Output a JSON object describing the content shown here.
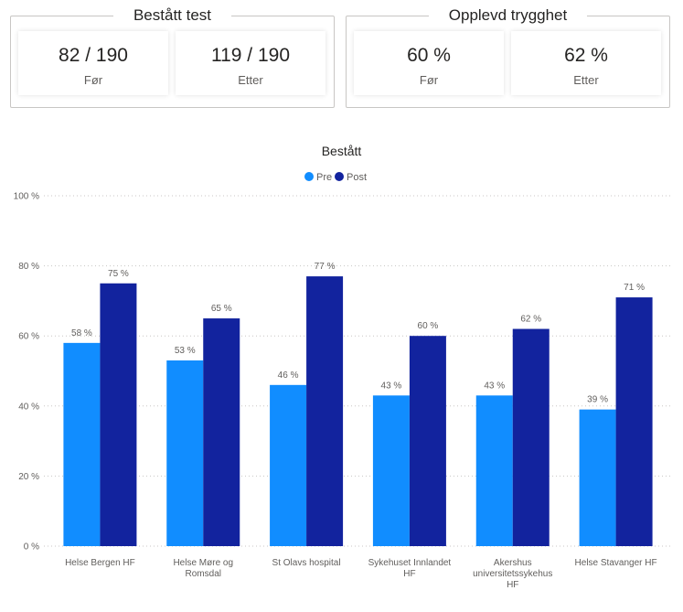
{
  "cards": {
    "group1": {
      "title": "Bestått test",
      "before": {
        "value": "82 / 190",
        "label": "Før"
      },
      "after": {
        "value": "119 / 190",
        "label": "Etter"
      }
    },
    "group2": {
      "title": "Opplevd trygghet",
      "before": {
        "value": "60 %",
        "label": "Før"
      },
      "after": {
        "value": "62 %",
        "label": "Etter"
      }
    }
  },
  "colors": {
    "pre": "#118DFF",
    "post": "#12239E",
    "grid": "#c8c6c4"
  },
  "chart_data": {
    "type": "bar",
    "title": "Bestått",
    "categories": [
      [
        "Helse Bergen HF"
      ],
      [
        "Helse Møre og",
        "Romsdal"
      ],
      [
        "St Olavs hospital"
      ],
      [
        "Sykehuset Innlandet",
        "HF"
      ],
      [
        "Akershus",
        "universitetssykehus",
        "HF"
      ],
      [
        "Helse Stavanger HF"
      ]
    ],
    "series": [
      {
        "name": "Pre",
        "values": [
          58,
          53,
          46,
          43,
          43,
          39
        ],
        "labels": [
          "58 %",
          "53 %",
          "46 %",
          "43 %",
          "43 %",
          "39 %"
        ]
      },
      {
        "name": "Post",
        "values": [
          75,
          65,
          77,
          60,
          62,
          71
        ],
        "labels": [
          "75 %",
          "65 %",
          "77 %",
          "60 %",
          "62 %",
          "71 %"
        ]
      }
    ],
    "ylim": [
      0,
      100
    ],
    "yticks": [
      0,
      20,
      40,
      60,
      80,
      100
    ],
    "ytick_labels": [
      "0 %",
      "20 %",
      "40 %",
      "60 %",
      "80 %",
      "100 %"
    ],
    "legend_position": "top-center",
    "grid": true
  }
}
